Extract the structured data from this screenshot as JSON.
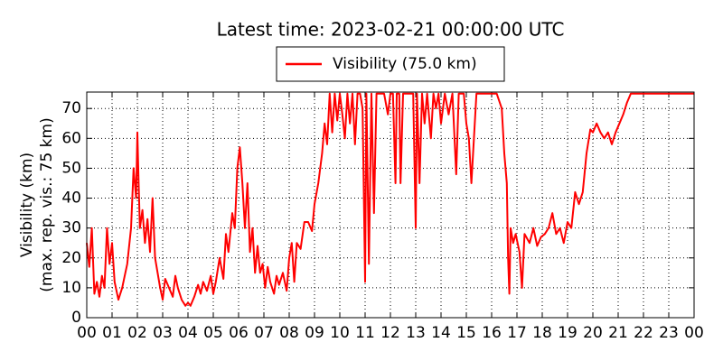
{
  "chart_data": {
    "type": "line",
    "title": "Latest time: 2023-02-21 00:00:00 UTC",
    "ylabel": [
      "Visibility (km)",
      "(max. rep. vis.: 75 km)"
    ],
    "xlim": [
      0,
      24
    ],
    "ylim": [
      0,
      75.5
    ],
    "xticks": [
      {
        "value": 0,
        "label": "00"
      },
      {
        "value": 1,
        "label": "01"
      },
      {
        "value": 2,
        "label": "02"
      },
      {
        "value": 3,
        "label": "03"
      },
      {
        "value": 4,
        "label": "04"
      },
      {
        "value": 5,
        "label": "05"
      },
      {
        "value": 6,
        "label": "06"
      },
      {
        "value": 7,
        "label": "07"
      },
      {
        "value": 8,
        "label": "08"
      },
      {
        "value": 9,
        "label": "09"
      },
      {
        "value": 10,
        "label": "10"
      },
      {
        "value": 11,
        "label": "11"
      },
      {
        "value": 12,
        "label": "12"
      },
      {
        "value": 13,
        "label": "13"
      },
      {
        "value": 14,
        "label": "14"
      },
      {
        "value": 15,
        "label": "15"
      },
      {
        "value": 16,
        "label": "16"
      },
      {
        "value": 17,
        "label": "17"
      },
      {
        "value": 18,
        "label": "18"
      },
      {
        "value": 19,
        "label": "19"
      },
      {
        "value": 20,
        "label": "20"
      },
      {
        "value": 21,
        "label": "21"
      },
      {
        "value": 22,
        "label": "22"
      },
      {
        "value": 23,
        "label": "23"
      },
      {
        "value": 24,
        "label": "00"
      }
    ],
    "yticks": [
      0,
      10,
      20,
      30,
      40,
      50,
      60,
      70
    ],
    "grid": true,
    "legend": "top-center",
    "x": [
      0.0,
      0.1,
      0.2,
      0.3,
      0.4,
      0.5,
      0.6,
      0.7,
      0.8,
      0.9,
      1.0,
      1.1,
      1.25,
      1.4,
      1.5,
      1.6,
      1.75,
      1.85,
      1.95,
      2.0,
      2.05,
      2.1,
      2.2,
      2.3,
      2.4,
      2.5,
      2.6,
      2.7,
      2.8,
      2.9,
      3.0,
      3.1,
      3.25,
      3.4,
      3.5,
      3.6,
      3.75,
      3.9,
      4.0,
      4.1,
      4.25,
      4.4,
      4.5,
      4.6,
      4.75,
      4.9,
      5.0,
      5.1,
      5.25,
      5.4,
      5.5,
      5.6,
      5.75,
      5.85,
      5.95,
      6.05,
      6.15,
      6.25,
      6.35,
      6.45,
      6.55,
      6.65,
      6.75,
      6.85,
      6.95,
      7.05,
      7.15,
      7.25,
      7.4,
      7.5,
      7.6,
      7.75,
      7.9,
      8.0,
      8.1,
      8.2,
      8.3,
      8.45,
      8.6,
      8.75,
      8.9,
      9.0,
      9.15,
      9.3,
      9.4,
      9.5,
      9.6,
      9.7,
      9.8,
      9.9,
      10.0,
      10.1,
      10.2,
      10.3,
      10.4,
      10.5,
      10.6,
      10.7,
      10.8,
      10.9,
      11.0,
      11.05,
      11.15,
      11.25,
      11.35,
      11.45,
      11.6,
      11.75,
      11.9,
      12.0,
      12.1,
      12.2,
      12.25,
      12.35,
      12.4,
      12.5,
      12.7,
      12.9,
      13.0,
      13.05,
      13.15,
      13.25,
      13.35,
      13.45,
      13.6,
      13.7,
      13.8,
      13.9,
      14.0,
      14.15,
      14.3,
      14.45,
      14.6,
      14.7,
      14.9,
      15.0,
      15.1,
      15.2,
      15.3,
      15.4,
      15.6,
      15.8,
      16.0,
      16.2,
      16.4,
      16.5,
      16.6,
      16.65,
      16.7,
      16.75,
      16.85,
      16.95,
      17.1,
      17.2,
      17.3,
      17.5,
      17.65,
      17.8,
      17.95,
      18.1,
      18.25,
      18.4,
      18.55,
      18.7,
      18.85,
      19.0,
      19.15,
      19.3,
      19.45,
      19.6,
      19.75,
      19.9,
      20.0,
      20.15,
      20.3,
      20.45,
      20.6,
      20.75,
      20.9,
      21.05,
      21.2,
      21.35,
      21.5,
      22.0,
      23.0,
      24.0
    ],
    "series": [
      {
        "name": "Visibility (75.0 km)",
        "color": "#ff0000",
        "values": [
          25,
          17,
          30,
          8,
          12,
          7,
          14,
          10,
          30,
          18,
          25,
          12,
          6,
          10,
          14,
          18,
          30,
          50,
          40,
          62,
          45,
          30,
          36,
          25,
          33,
          22,
          40,
          20,
          15,
          10,
          6,
          13,
          10,
          7,
          14,
          10,
          6,
          4,
          5,
          4,
          7,
          11,
          8,
          12,
          9,
          14,
          8,
          12,
          20,
          13,
          28,
          22,
          35,
          30,
          50,
          57,
          45,
          30,
          45,
          22,
          30,
          15,
          24,
          15,
          18,
          10,
          17,
          12,
          8,
          14,
          11,
          15,
          9,
          20,
          25,
          12,
          25,
          23,
          32,
          32,
          29,
          38,
          45,
          55,
          65,
          58,
          75,
          62,
          75,
          66,
          75,
          68,
          60,
          75,
          65,
          75,
          58,
          75,
          75,
          70,
          12,
          75,
          18,
          75,
          35,
          75,
          75,
          75,
          68,
          75,
          75,
          45,
          75,
          75,
          45,
          75,
          75,
          75,
          30,
          75,
          45,
          75,
          65,
          75,
          60,
          75,
          70,
          75,
          65,
          75,
          68,
          75,
          48,
          75,
          75,
          65,
          60,
          45,
          60,
          75,
          75,
          75,
          75,
          75,
          70,
          55,
          45,
          20,
          8,
          30,
          25,
          28,
          22,
          10,
          28,
          25,
          30,
          24,
          27,
          28,
          30,
          35,
          28,
          30,
          25,
          32,
          30,
          42,
          38,
          42,
          55,
          63,
          62,
          65,
          62,
          60,
          62,
          58,
          62,
          65,
          68,
          72,
          75,
          75,
          75,
          75
        ]
      }
    ]
  }
}
